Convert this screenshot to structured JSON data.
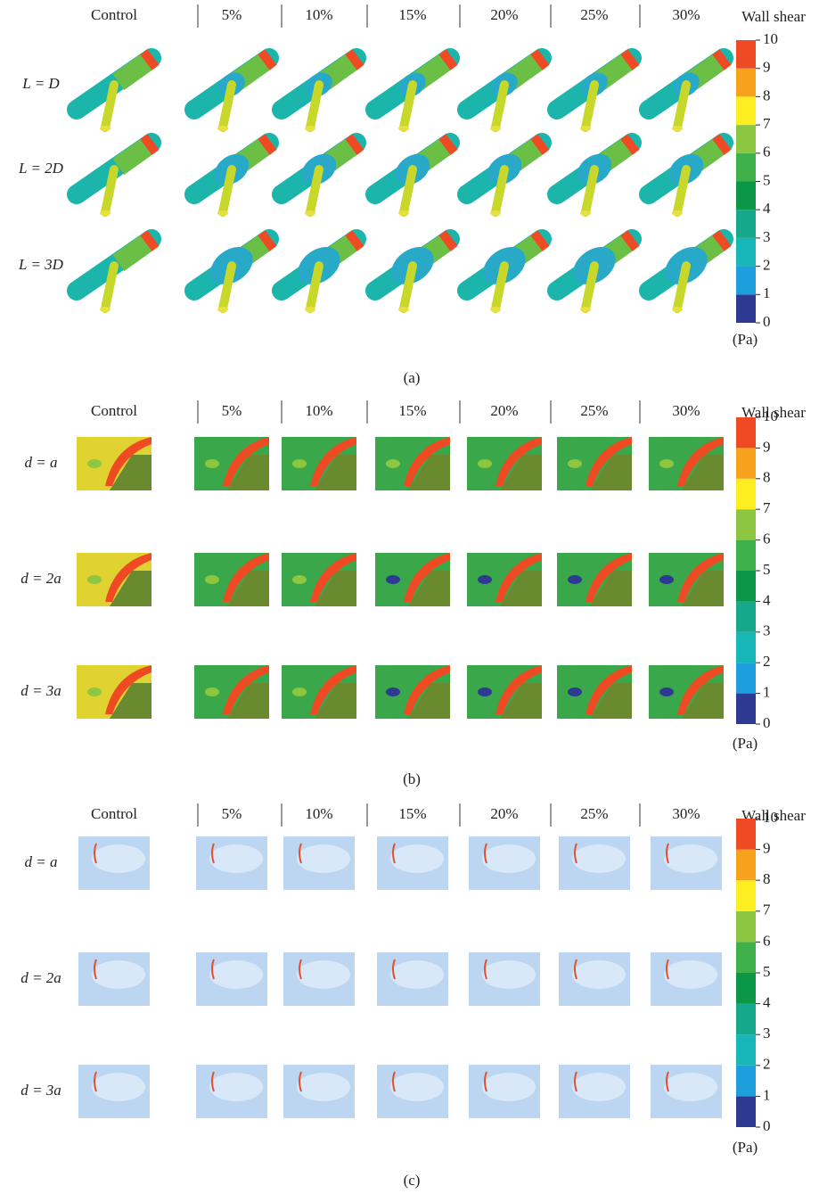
{
  "panels": [
    {
      "label": "(a)",
      "columns": [
        "Control",
        "5%",
        "10%",
        "15%",
        "20%",
        "25%",
        "30%"
      ],
      "rows": [
        "L = D",
        "L = 2D",
        "L = 3D"
      ],
      "colorbar": {
        "title": "Wall shear",
        "unit": "(Pa)",
        "ticks": [
          0,
          1,
          2,
          3,
          4,
          5,
          6,
          7,
          8,
          9,
          10
        ],
        "colors": [
          "#2e3a92",
          "#1c9fdc",
          "#17b7b8",
          "#16a88a",
          "#0a9848",
          "#3fb04a",
          "#8dc640",
          "#fcee21",
          "#f6a21d",
          "#ee4a24"
        ]
      }
    },
    {
      "label": "(b)",
      "columns": [
        "Control",
        "5%",
        "10%",
        "15%",
        "20%",
        "25%",
        "30%"
      ],
      "rows": [
        "d = a",
        "d = 2a",
        "d = 3a"
      ],
      "colorbar": {
        "title": "Wall shear",
        "unit": "(Pa)",
        "ticks": [
          0,
          1,
          2,
          3,
          4,
          5,
          6,
          7,
          8,
          9,
          10
        ],
        "colors": [
          "#2e3a92",
          "#1c9fdc",
          "#17b7b8",
          "#16a88a",
          "#0a9848",
          "#3fb04a",
          "#8dc640",
          "#fcee21",
          "#f6a21d",
          "#ee4a24"
        ]
      }
    },
    {
      "label": "(c)",
      "columns": [
        "Control",
        "5%",
        "10%",
        "15%",
        "20%",
        "25%",
        "30%"
      ],
      "rows": [
        "d = a",
        "d = 2a",
        "d = 3a"
      ],
      "colorbar": {
        "title": "Wall shear",
        "unit": "(Pa)",
        "ticks": [
          0,
          1,
          2,
          3,
          4,
          5,
          6,
          7,
          8,
          9,
          10
        ],
        "colors": [
          "#2e3a92",
          "#1c9fdc",
          "#17b7b8",
          "#16a88a",
          "#0a9848",
          "#3fb04a",
          "#8dc640",
          "#fcee21",
          "#f6a21d",
          "#ee4a24"
        ]
      }
    }
  ]
}
